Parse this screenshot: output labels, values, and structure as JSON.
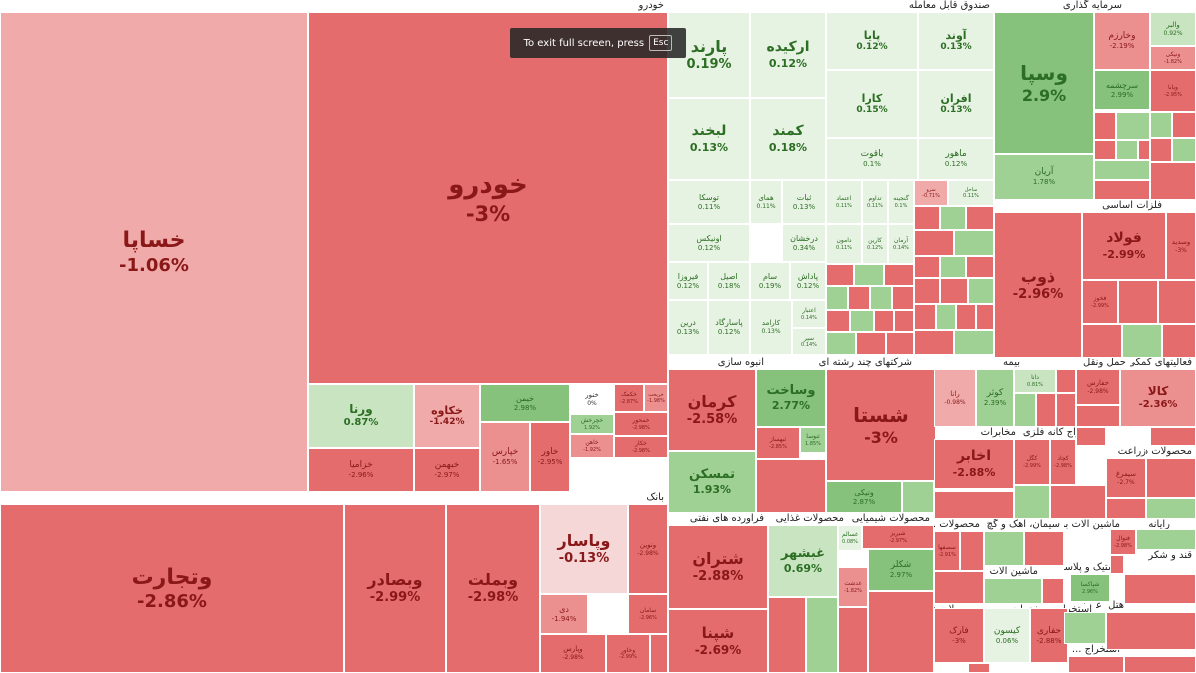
{
  "toast": {
    "text": "To exit full screen, press",
    "key": "Esc"
  },
  "colors": {
    "red_strong": "#e46c6c",
    "red_mid": "#ec8f8f",
    "red_light": "#f1aaaa",
    "red_pale": "#f6d7d7",
    "green_pale": "#e6f2e2",
    "green_light": "#c8e4c0",
    "green_mid": "#9fd094",
    "green_strong": "#86c27b",
    "white": "#ffffff"
  },
  "sectors": [
    "خودرو",
    "صندوق قابل معامله",
    "سرمایه گذاری",
    "فلزات اساسی",
    "بانک",
    "انبوه سازی",
    "شرکتهای چند رشته ای",
    "بیمه",
    "حمل ونقل",
    "فعالیتهای کمکی",
    "مخابرات",
    "استخراج کانه فلزی",
    "زراعت",
    "محصولات دار...",
    "فراورده های نفتی",
    "محصولات غذایی",
    "محصولات شیمیایی",
    "محصولات ...",
    "سیمان، آهک و گچ",
    "ماشین آلات برقی",
    "رایانه",
    "ماشین آلات",
    "قند و شکر",
    "لاستیک و پلاستیک",
    "عرضه برق",
    "هتل",
    "محصولات ف...",
    "خدمات مه...",
    "استخراج ...",
    "محصولات ...",
    "استخراج ..."
  ],
  "tiles": [
    {
      "name": "خساپا",
      "pct": "-1.06%"
    },
    {
      "name": "خودرو",
      "pct": "-3%"
    },
    {
      "name": "ورنا",
      "pct": "0.87%"
    },
    {
      "name": "خکاوه",
      "pct": "-1.42%"
    },
    {
      "name": "خزامیا",
      "pct": "-2.96%"
    },
    {
      "name": "خبهمن",
      "pct": "-2.97%"
    },
    {
      "name": "خیمن",
      "pct": "2.98%"
    },
    {
      "name": "خنور",
      "pct": "0%"
    },
    {
      "name": "خکمک",
      "pct": "-2.87%"
    },
    {
      "name": "خریخت",
      "pct": "-1.98%"
    },
    {
      "name": "خپارس",
      "pct": "-1.65%"
    },
    {
      "name": "خاور",
      "pct": "-2.95%"
    },
    {
      "name": "خچرخش",
      "pct": "1.92%"
    },
    {
      "name": "خاهن",
      "pct": "-1.92%"
    },
    {
      "name": "خمحور",
      "pct": "-2.98%"
    },
    {
      "name": "خکار",
      "pct": "-2.98%"
    },
    {
      "name": "پارند",
      "pct": "0.19%"
    },
    {
      "name": "ارکیده",
      "pct": "0.12%"
    },
    {
      "name": "پایا",
      "pct": "0.12%"
    },
    {
      "name": "آوند",
      "pct": "0.13%"
    },
    {
      "name": "کارا",
      "pct": "0.15%"
    },
    {
      "name": "افران",
      "pct": "0.13%"
    },
    {
      "name": "لبخند",
      "pct": "0.13%"
    },
    {
      "name": "کمند",
      "pct": "0.18%"
    },
    {
      "name": "یاقوت",
      "pct": "0.1%"
    },
    {
      "name": "ماهور",
      "pct": "0.12%"
    },
    {
      "name": "توسکا",
      "pct": "0.11%"
    },
    {
      "name": "همای",
      "pct": "0.11%"
    },
    {
      "name": "ثبات",
      "pct": "0.13%"
    },
    {
      "name": "اعتماد",
      "pct": "0.11%"
    },
    {
      "name": "تداوم",
      "pct": "0.11%"
    },
    {
      "name": "گنجینه",
      "pct": "0.1%"
    },
    {
      "name": "اونیکس",
      "pct": "0.12%"
    },
    {
      "name": "درخشان",
      "pct": "0.34%"
    },
    {
      "name": "دامون",
      "pct": "0.11%"
    },
    {
      "name": "کارین",
      "pct": "0.12%"
    },
    {
      "name": "آرمان",
      "pct": "0.14%"
    },
    {
      "name": "فیروزا",
      "pct": "0.12%"
    },
    {
      "name": "اصیل",
      "pct": "0.18%"
    },
    {
      "name": "سام",
      "pct": "0.19%"
    },
    {
      "name": "پاداش",
      "pct": "0.12%"
    },
    {
      "name": "درین",
      "pct": "0.13%"
    },
    {
      "name": "پاسارگاد",
      "pct": "0.12%"
    },
    {
      "name": "کارامد",
      "pct": "0.13%"
    },
    {
      "name": "اعتبار",
      "pct": "0.14%"
    },
    {
      "name": "سپر",
      "pct": "0.14%"
    },
    {
      "name": "سرو",
      "pct": "-0.71%"
    },
    {
      "name": "ساحل",
      "pct": "0.11%"
    },
    {
      "name": "وسپا",
      "pct": "2.9%"
    },
    {
      "name": "وخارزم",
      "pct": "-2.19%"
    },
    {
      "name": "والبر",
      "pct": "0.92%"
    },
    {
      "name": "ونیکی",
      "pct": "-1.82%"
    },
    {
      "name": "سرچشمه",
      "pct": "2.99%"
    },
    {
      "name": "ویابا",
      "pct": "-2.95%"
    },
    {
      "name": "آریان",
      "pct": "1.78%"
    },
    {
      "name": "ذوب",
      "pct": "-2.96%"
    },
    {
      "name": "فولاد",
      "pct": "-2.99%"
    },
    {
      "name": "وسدید",
      "pct": "-3%"
    },
    {
      "name": "فخوز",
      "pct": "-2.99%"
    },
    {
      "name": "وتجارت",
      "pct": "-2.86%"
    },
    {
      "name": "وبصادر",
      "pct": "-2.99%"
    },
    {
      "name": "وبملت",
      "pct": "-2.98%"
    },
    {
      "name": "وپاسار",
      "pct": "-0.13%"
    },
    {
      "name": "ونوین",
      "pct": "-2.98%"
    },
    {
      "name": "دی",
      "pct": "-1.94%"
    },
    {
      "name": "سامان",
      "pct": "-2.96%"
    },
    {
      "name": "وپارس",
      "pct": "-2.98%"
    },
    {
      "name": "وخاور",
      "pct": "-2.99%"
    },
    {
      "name": "کرمان",
      "pct": "-2.58%"
    },
    {
      "name": "وساخت",
      "pct": "2.77%"
    },
    {
      "name": "ثنوسا",
      "pct": "1.85%"
    },
    {
      "name": "ثبهساز",
      "pct": "-2.85%"
    },
    {
      "name": "تمسکن",
      "pct": "1.93%"
    },
    {
      "name": "شستا",
      "pct": "-3%"
    },
    {
      "name": "ونیکی",
      "pct": "2.87%"
    },
    {
      "name": "رانا",
      "pct": "-0.98%"
    },
    {
      "name": "کوثر",
      "pct": "2.39%"
    },
    {
      "name": "دانا",
      "pct": "0.81%"
    },
    {
      "name": "حفارس",
      "pct": "-2.98%"
    },
    {
      "name": "کالا",
      "pct": "-2.36%"
    },
    {
      "name": "اخابر",
      "pct": "-2.88%"
    },
    {
      "name": "کگل",
      "pct": "-2.99%"
    },
    {
      "name": "کچاد",
      "pct": "-2.98%"
    },
    {
      "name": "سیمرغ",
      "pct": "-2.7%"
    },
    {
      "name": "شتران",
      "pct": "-2.88%"
    },
    {
      "name": "شپنا",
      "pct": "-2.69%"
    },
    {
      "name": "غبشهر",
      "pct": "0.69%"
    },
    {
      "name": "غسالم",
      "pct": "0.08%"
    },
    {
      "name": "غدشت",
      "pct": "-1.82%"
    },
    {
      "name": "شکلر",
      "pct": "2.97%"
    },
    {
      "name": "شبریز",
      "pct": "-2.97%"
    },
    {
      "name": "فارک",
      "pct": "-3%"
    },
    {
      "name": "کیسون",
      "pct": "0.06%"
    },
    {
      "name": "حفاری",
      "pct": "-2.88%"
    },
    {
      "name": "سصفها",
      "pct": "-2.91%"
    },
    {
      "name": "شپاکسا",
      "pct": "2.96%"
    },
    {
      "name": "فنوال",
      "pct": "-2.98%"
    }
  ]
}
